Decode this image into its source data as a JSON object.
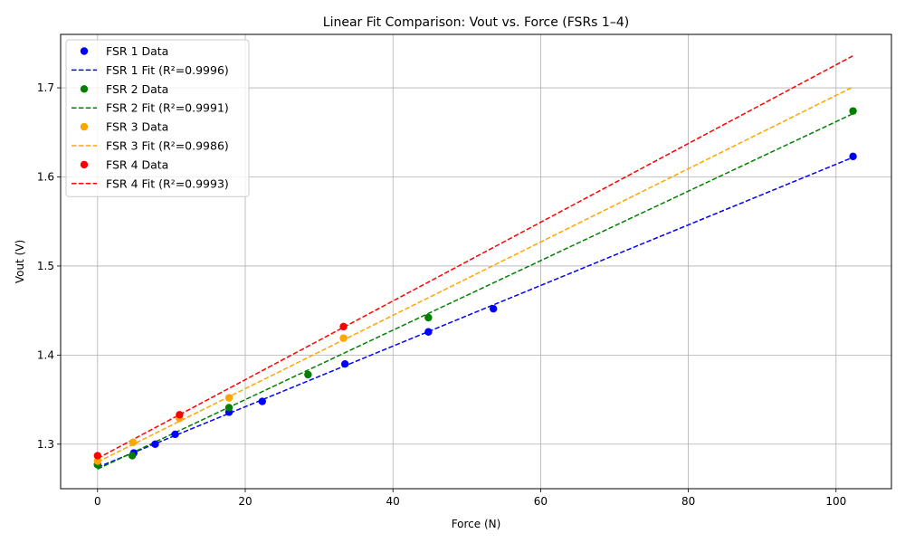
{
  "chart_data": {
    "type": "scatter",
    "title": "Linear Fit Comparison: Vout vs. Force (FSRs 1–4)",
    "xlabel": "Force (N)",
    "ylabel": "Vout (V)",
    "xlim": [
      -5,
      107.5
    ],
    "ylim": [
      1.25,
      1.76
    ],
    "xticks": [
      0,
      20,
      40,
      60,
      80,
      100
    ],
    "yticks": [
      1.3,
      1.4,
      1.5,
      1.6,
      1.7
    ],
    "xtick_labels": [
      "0",
      "20",
      "40",
      "60",
      "80",
      "100"
    ],
    "ytick_labels": [
      "1.3",
      "1.4",
      "1.5",
      "1.6",
      "1.7"
    ],
    "grid": true,
    "legend_position": "top-left",
    "series": [
      {
        "name": "FSR 1 Data",
        "fit_name": "FSR 1 Fit (R²=0.9996)",
        "color": "#0000ff",
        "points": [
          [
            0,
            1.277
          ],
          [
            4.9,
            1.29
          ],
          [
            7.8,
            1.3
          ],
          [
            10.5,
            1.311
          ],
          [
            17.8,
            1.336
          ],
          [
            22.3,
            1.348
          ],
          [
            33.5,
            1.39
          ],
          [
            44.8,
            1.426
          ],
          [
            53.6,
            1.452
          ],
          [
            102.3,
            1.623
          ]
        ],
        "fit": [
          [
            0,
            1.274
          ],
          [
            102.3,
            1.622
          ]
        ]
      },
      {
        "name": "FSR 2 Data",
        "fit_name": "FSR 2 Fit (R²=0.9991)",
        "color": "#008000",
        "points": [
          [
            0,
            1.277
          ],
          [
            4.7,
            1.287
          ],
          [
            17.8,
            1.341
          ],
          [
            28.5,
            1.378
          ],
          [
            44.8,
            1.442
          ],
          [
            102.3,
            1.674
          ]
        ],
        "fit": [
          [
            0,
            1.272
          ],
          [
            102.3,
            1.671
          ]
        ]
      },
      {
        "name": "FSR 3 Data",
        "fit_name": "FSR 3 Fit (R²=0.9986)",
        "color": "#ffa500",
        "points": [
          [
            0,
            1.281
          ],
          [
            4.8,
            1.302
          ],
          [
            11.1,
            1.329
          ],
          [
            17.8,
            1.352
          ],
          [
            33.3,
            1.419
          ]
        ],
        "fit": [
          [
            0,
            1.28
          ],
          [
            102.3,
            1.701
          ]
        ]
      },
      {
        "name": "FSR 4 Data",
        "fit_name": "FSR 4 Fit (R²=0.9993)",
        "color": "#ff0000",
        "points": [
          [
            0,
            1.287
          ],
          [
            11.1,
            1.333
          ],
          [
            33.3,
            1.432
          ]
        ],
        "fit": [
          [
            0,
            1.284
          ],
          [
            102.3,
            1.736
          ]
        ]
      }
    ]
  }
}
